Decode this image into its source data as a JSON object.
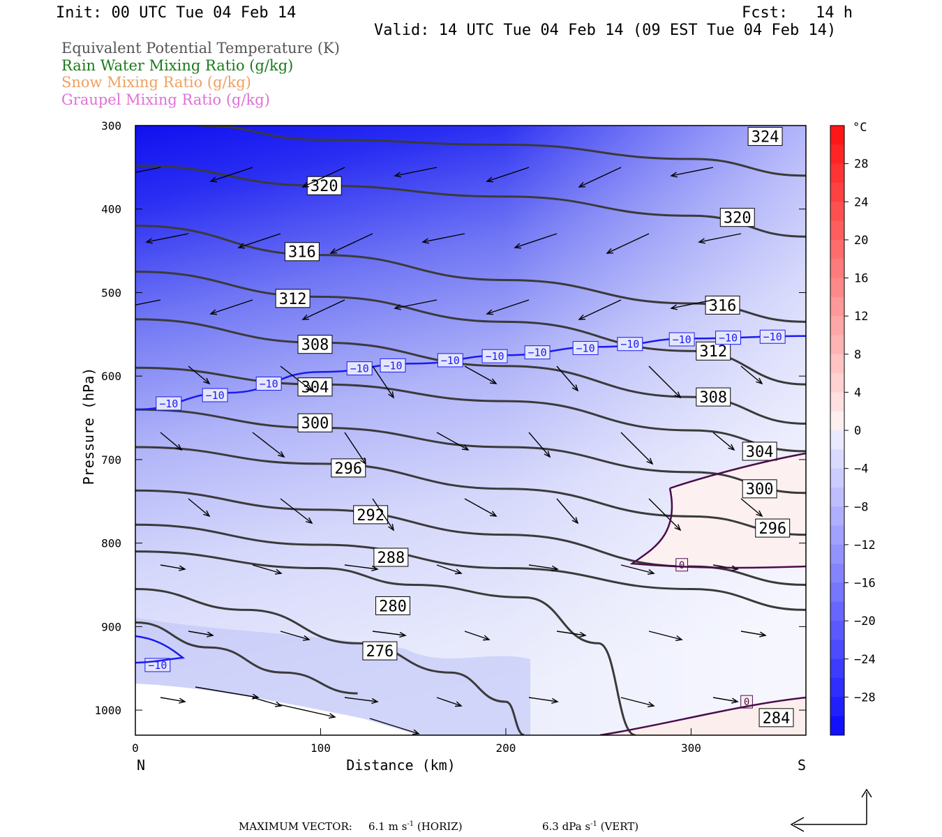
{
  "header": {
    "init": "Init: 00 UTC Tue 04 Feb 14",
    "fcst": "Fcst:   14 h",
    "valid": "Valid: 14 UTC Tue 04 Feb 14 (09 EST Tue 04 Feb 14)"
  },
  "legend": [
    {
      "text": "Equivalent Potential Temperature (K)",
      "color": "#555555"
    },
    {
      "text": "Rain Water Mixing Ratio (g/kg)",
      "color": "#1a7a1a"
    },
    {
      "text": "Snow Mixing Ratio (g/kg)",
      "color": "#f0a060"
    },
    {
      "text": "Graupel Mixing Ratio (g/kg)",
      "color": "#e070d8"
    }
  ],
  "footer": {
    "label": "MAXIMUM VECTOR:",
    "horiz": "6.1 m s",
    "horiz_unit": "(HORIZ)",
    "vert": "6.3 dPa s",
    "vert_unit": "(VERT)",
    "exp": "-1"
  },
  "chart_data": {
    "type": "contour-cross-section",
    "xlabel": "Distance (km)",
    "ylabel": "Pressure (hPa)",
    "x_ticks": [
      0,
      100,
      200,
      300
    ],
    "xlim": [
      0,
      362
    ],
    "y_ticks": [
      300,
      400,
      500,
      600,
      700,
      800,
      900,
      1000
    ],
    "ylim": [
      300,
      1030
    ],
    "x_end_labels": {
      "left": "N",
      "right": "S"
    },
    "colorbar": {
      "unit": "°C",
      "ticks": [
        28,
        24,
        20,
        16,
        12,
        8,
        4,
        0,
        -4,
        -8,
        -12,
        -16,
        -20,
        -24,
        -28
      ]
    },
    "theta_e_contours": [
      {
        "label": "324",
        "x": [
          34,
          100,
          200,
          300,
          362
        ],
        "p": [
          300,
          317,
          323,
          340,
          360
        ]
      },
      {
        "label": "320",
        "x": [
          0,
          100,
          200,
          300,
          362
        ],
        "p": [
          348,
          372,
          385,
          408,
          433
        ]
      },
      {
        "label": "316",
        "x": [
          0,
          100,
          200,
          300,
          362
        ],
        "p": [
          420,
          455,
          485,
          513,
          535
        ]
      },
      {
        "label": "312",
        "x": [
          0,
          100,
          200,
          300,
          362
        ],
        "p": [
          475,
          505,
          535,
          570,
          610
        ]
      },
      {
        "label": "308",
        "x": [
          0,
          100,
          200,
          300,
          362
        ],
        "p": [
          532,
          560,
          588,
          625,
          657
        ]
      },
      {
        "label": "304",
        "x": [
          0,
          100,
          200,
          300,
          362
        ],
        "p": [
          590,
          610,
          630,
          665,
          690
        ]
      },
      {
        "label": "300",
        "x": [
          0,
          100,
          200,
          300,
          362
        ],
        "p": [
          640,
          662,
          685,
          715,
          740
        ]
      },
      {
        "label": "296",
        "x": [
          0,
          100,
          200,
          300,
          362
        ],
        "p": [
          685,
          705,
          735,
          768,
          790
        ]
      },
      {
        "label": "292",
        "x": [
          0,
          100,
          200,
          300,
          362
        ],
        "p": [
          737,
          760,
          790,
          828,
          850
        ]
      },
      {
        "label": "288",
        "x": [
          0,
          100,
          200,
          300,
          362
        ],
        "p": [
          778,
          802,
          830,
          855,
          880
        ]
      },
      {
        "label": "280",
        "x": [
          0,
          100,
          150,
          210,
          250,
          270
        ],
        "p": [
          810,
          830,
          850,
          865,
          920,
          1030
        ]
      },
      {
        "label": "276",
        "x": [
          0,
          60,
          120,
          170,
          200,
          210
        ],
        "p": [
          855,
          880,
          920,
          955,
          990,
          1030
        ]
      },
      {
        "label": "284",
        "x": [
          0,
          40,
          80,
          120
        ],
        "p": [
          895,
          925,
          955,
          980
        ]
      }
    ],
    "isotherm_minus10": {
      "label": "-10",
      "x": [
        0,
        50,
        100,
        150,
        200,
        250,
        300,
        362
      ],
      "p": [
        640,
        620,
        595,
        585,
        575,
        565,
        555,
        552
      ]
    },
    "isotherm_zero": {
      "label": "0"
    }
  }
}
